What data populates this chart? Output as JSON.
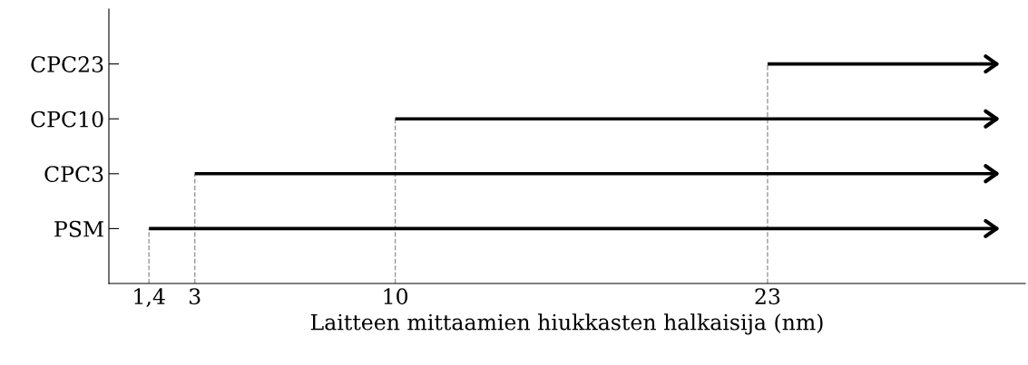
{
  "chart_data": {
    "type": "bar",
    "orientation": "horizontal",
    "xlabel": "Laitteen mittaamien hiukkasten halkaisija (nm)",
    "categories": [
      "CPC23",
      "CPC10",
      "CPC3",
      "PSM"
    ],
    "base": [
      23,
      10,
      3,
      1.4
    ],
    "values": [
      8,
      21,
      28,
      29.6
    ],
    "color": "#000000",
    "xlim": [
      0,
      32
    ],
    "xticks": [
      {
        "value": 1.4,
        "label": "1,4"
      },
      3,
      10,
      23
    ],
    "ref_lines": [
      {
        "axis": "x",
        "value": 1.4,
        "color": "#999999",
        "line_style": "dashed"
      },
      {
        "axis": "x",
        "value": 3,
        "color": "#999999",
        "line_style": "dashed"
      },
      {
        "axis": "x",
        "value": 10,
        "color": "#999999",
        "line_style": "dashed"
      },
      {
        "axis": "x",
        "value": 23,
        "color": "#999999",
        "line_style": "dashed"
      }
    ],
    "grid": false,
    "legend": false
  }
}
